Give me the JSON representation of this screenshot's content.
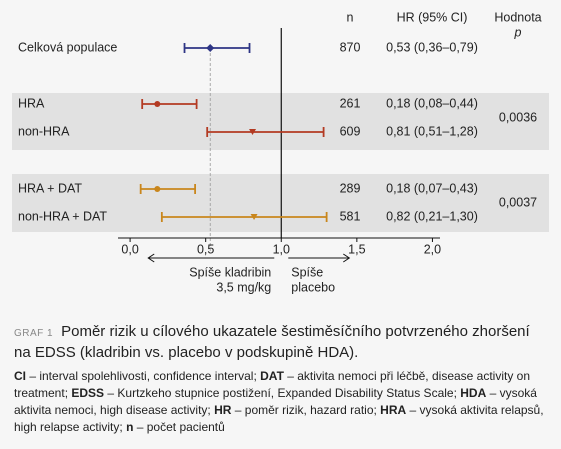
{
  "chart_data": {
    "type": "forest",
    "headers": {
      "n": "n",
      "ci": "HR (95% CI)",
      "p": "Hodnota",
      "p_symbol": "p"
    },
    "groups": [
      {
        "p": null,
        "rows": [
          {
            "label": "Celková populace",
            "n": 870,
            "hr": 0.53,
            "lower": 0.36,
            "upper": 0.79,
            "ci_label": "0,53 (0,36–0,79)",
            "color": "#2e3585",
            "marker": "diamond"
          }
        ]
      },
      {
        "p": "0,0036",
        "rows": [
          {
            "label": "HRA",
            "n": 261,
            "hr": 0.18,
            "lower": 0.08,
            "upper": 0.44,
            "ci_label": "0,18 (0,08–0,44)",
            "color": "#b33a22",
            "marker": "circle"
          },
          {
            "label": "non-HRA",
            "n": 609,
            "hr": 0.81,
            "lower": 0.51,
            "upper": 1.28,
            "ci_label": "0,81 (0,51–1,28)",
            "color": "#b33a22",
            "marker": "triangle"
          }
        ]
      },
      {
        "p": "0,0037",
        "rows": [
          {
            "label": "HRA + DAT",
            "n": 289,
            "hr": 0.18,
            "lower": 0.07,
            "upper": 0.43,
            "ci_label": "0,18 (0,07–0,43)",
            "color": "#c9861c",
            "marker": "circle"
          },
          {
            "label": "non-HRA + DAT",
            "n": 581,
            "hr": 0.82,
            "lower": 0.21,
            "upper": 1.3,
            "ci_label": "0,82 (0,21–1,30)",
            "color": "#c9861c",
            "marker": "triangle"
          }
        ]
      }
    ],
    "xlim": [
      -0.08,
      2.05
    ],
    "xticks": [
      {
        "value": 0,
        "label": "0,0"
      },
      {
        "value": 0.5,
        "label": "0,5"
      },
      {
        "value": 1,
        "label": "1,0"
      },
      {
        "value": 1.5,
        "label": "1,5"
      },
      {
        "value": 2,
        "label": "2,0"
      }
    ],
    "reference": 1,
    "left_label": [
      "Spíše kladribin",
      "3,5 mg/kg"
    ],
    "right_label": [
      "Spíše",
      "placebo"
    ]
  },
  "caption": {
    "tag": "GRAF 1",
    "title": "Poměr rizik u cílového ukazatele šestiměsíčního potvrzeného zhoršení na EDSS (kladribin vs. placebo v podskupině HDA).",
    "notes": [
      {
        "term": "CI",
        "text": " – interval spolehlivosti, confidence interval; "
      },
      {
        "term": "DAT",
        "text": " – aktivita nemoci při léčbě, disease activity on treatment; "
      },
      {
        "term": "EDSS",
        "text": " – Kurtzkeho stupnice postižení, Expanded Disability Status Scale; "
      },
      {
        "term": "HDA",
        "text": " – vysoká aktivita nemoci, high disease activity; "
      },
      {
        "term": "HR",
        "text": " – poměr rizik, hazard ratio; "
      },
      {
        "term": "HRA",
        "text": " – vysoká aktivita relapsů, high relapse activity; "
      },
      {
        "term": "n",
        "text": " – počet pacientů"
      }
    ]
  }
}
